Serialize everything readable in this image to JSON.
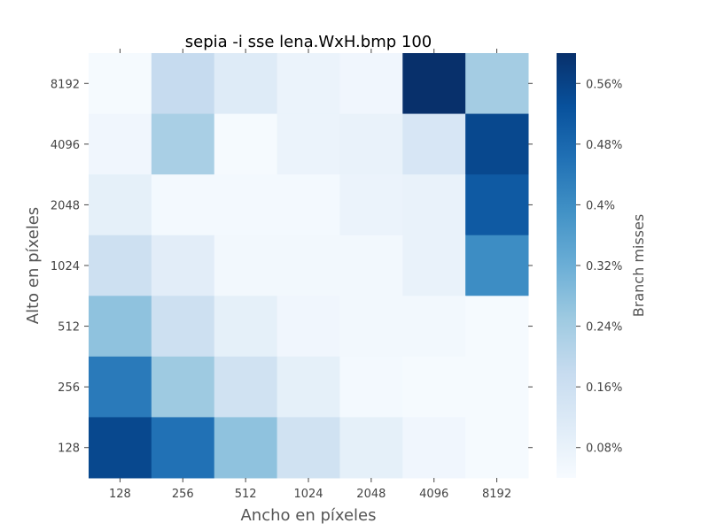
{
  "chart_data": {
    "type": "heatmap",
    "title": "sepia -i sse lena.WxH.bmp 100",
    "xlabel": "Ancho en píxeles",
    "ylabel": "Alto en píxeles",
    "colorbar_label": "Branch misses",
    "colormap": "Blues",
    "x_categories": [
      "128",
      "256",
      "512",
      "1024",
      "2048",
      "4096",
      "8192"
    ],
    "y_categories": [
      "8192",
      "4096",
      "2048",
      "1024",
      "512",
      "256",
      "128"
    ],
    "values": [
      [
        0.045,
        0.18,
        0.11,
        0.075,
        0.06,
        0.6,
        0.24
      ],
      [
        0.06,
        0.23,
        0.045,
        0.075,
        0.08,
        0.13,
        0.55
      ],
      [
        0.09,
        0.05,
        0.05,
        0.05,
        0.075,
        0.08,
        0.51
      ],
      [
        0.16,
        0.1,
        0.055,
        0.055,
        0.055,
        0.08,
        0.4
      ],
      [
        0.27,
        0.16,
        0.09,
        0.06,
        0.055,
        0.055,
        0.045
      ],
      [
        0.44,
        0.25,
        0.15,
        0.09,
        0.05,
        0.045,
        0.045
      ],
      [
        0.55,
        0.46,
        0.27,
        0.15,
        0.09,
        0.06,
        0.045
      ]
    ],
    "colorbar_range": [
      0.04,
      0.6
    ],
    "colorbar_ticks": [
      0.08,
      0.16,
      0.24,
      0.32,
      0.4,
      0.48,
      0.56
    ],
    "colorbar_tick_labels": [
      "0.08%",
      "0.16%",
      "0.24%",
      "0.32%",
      "0.4%",
      "0.48%",
      "0.56%"
    ],
    "grid": false
  }
}
